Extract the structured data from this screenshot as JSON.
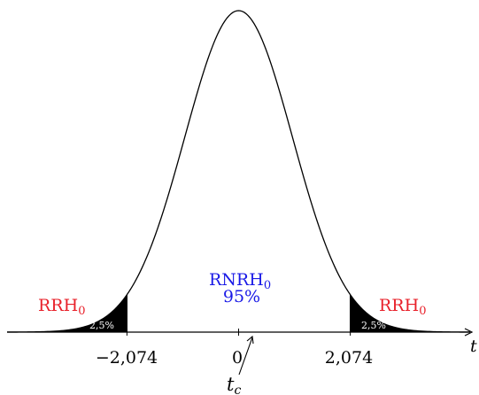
{
  "chart_data": {
    "type": "area",
    "distribution": "t",
    "x_range": [
      -4.3,
      4.3
    ],
    "critical_values": [
      -2.074,
      2.074
    ],
    "center": 0,
    "axis": {
      "variable": "t",
      "tick_labels": [
        "−2,074",
        "0",
        "2,074"
      ]
    },
    "regions": {
      "left_reject": {
        "name": "RRH",
        "subscript": "0",
        "percent": "2,5%",
        "color": "#e8202a",
        "fill": "#000000"
      },
      "right_reject": {
        "name": "RRH",
        "subscript": "0",
        "percent": "2,5%",
        "color": "#e8202a",
        "fill": "#000000"
      },
      "accept": {
        "name": "RNRH",
        "subscript": "0",
        "percent": "95%",
        "color": "#1a1ae6"
      }
    },
    "annotation": {
      "symbol": "t",
      "subscript": "c"
    }
  }
}
